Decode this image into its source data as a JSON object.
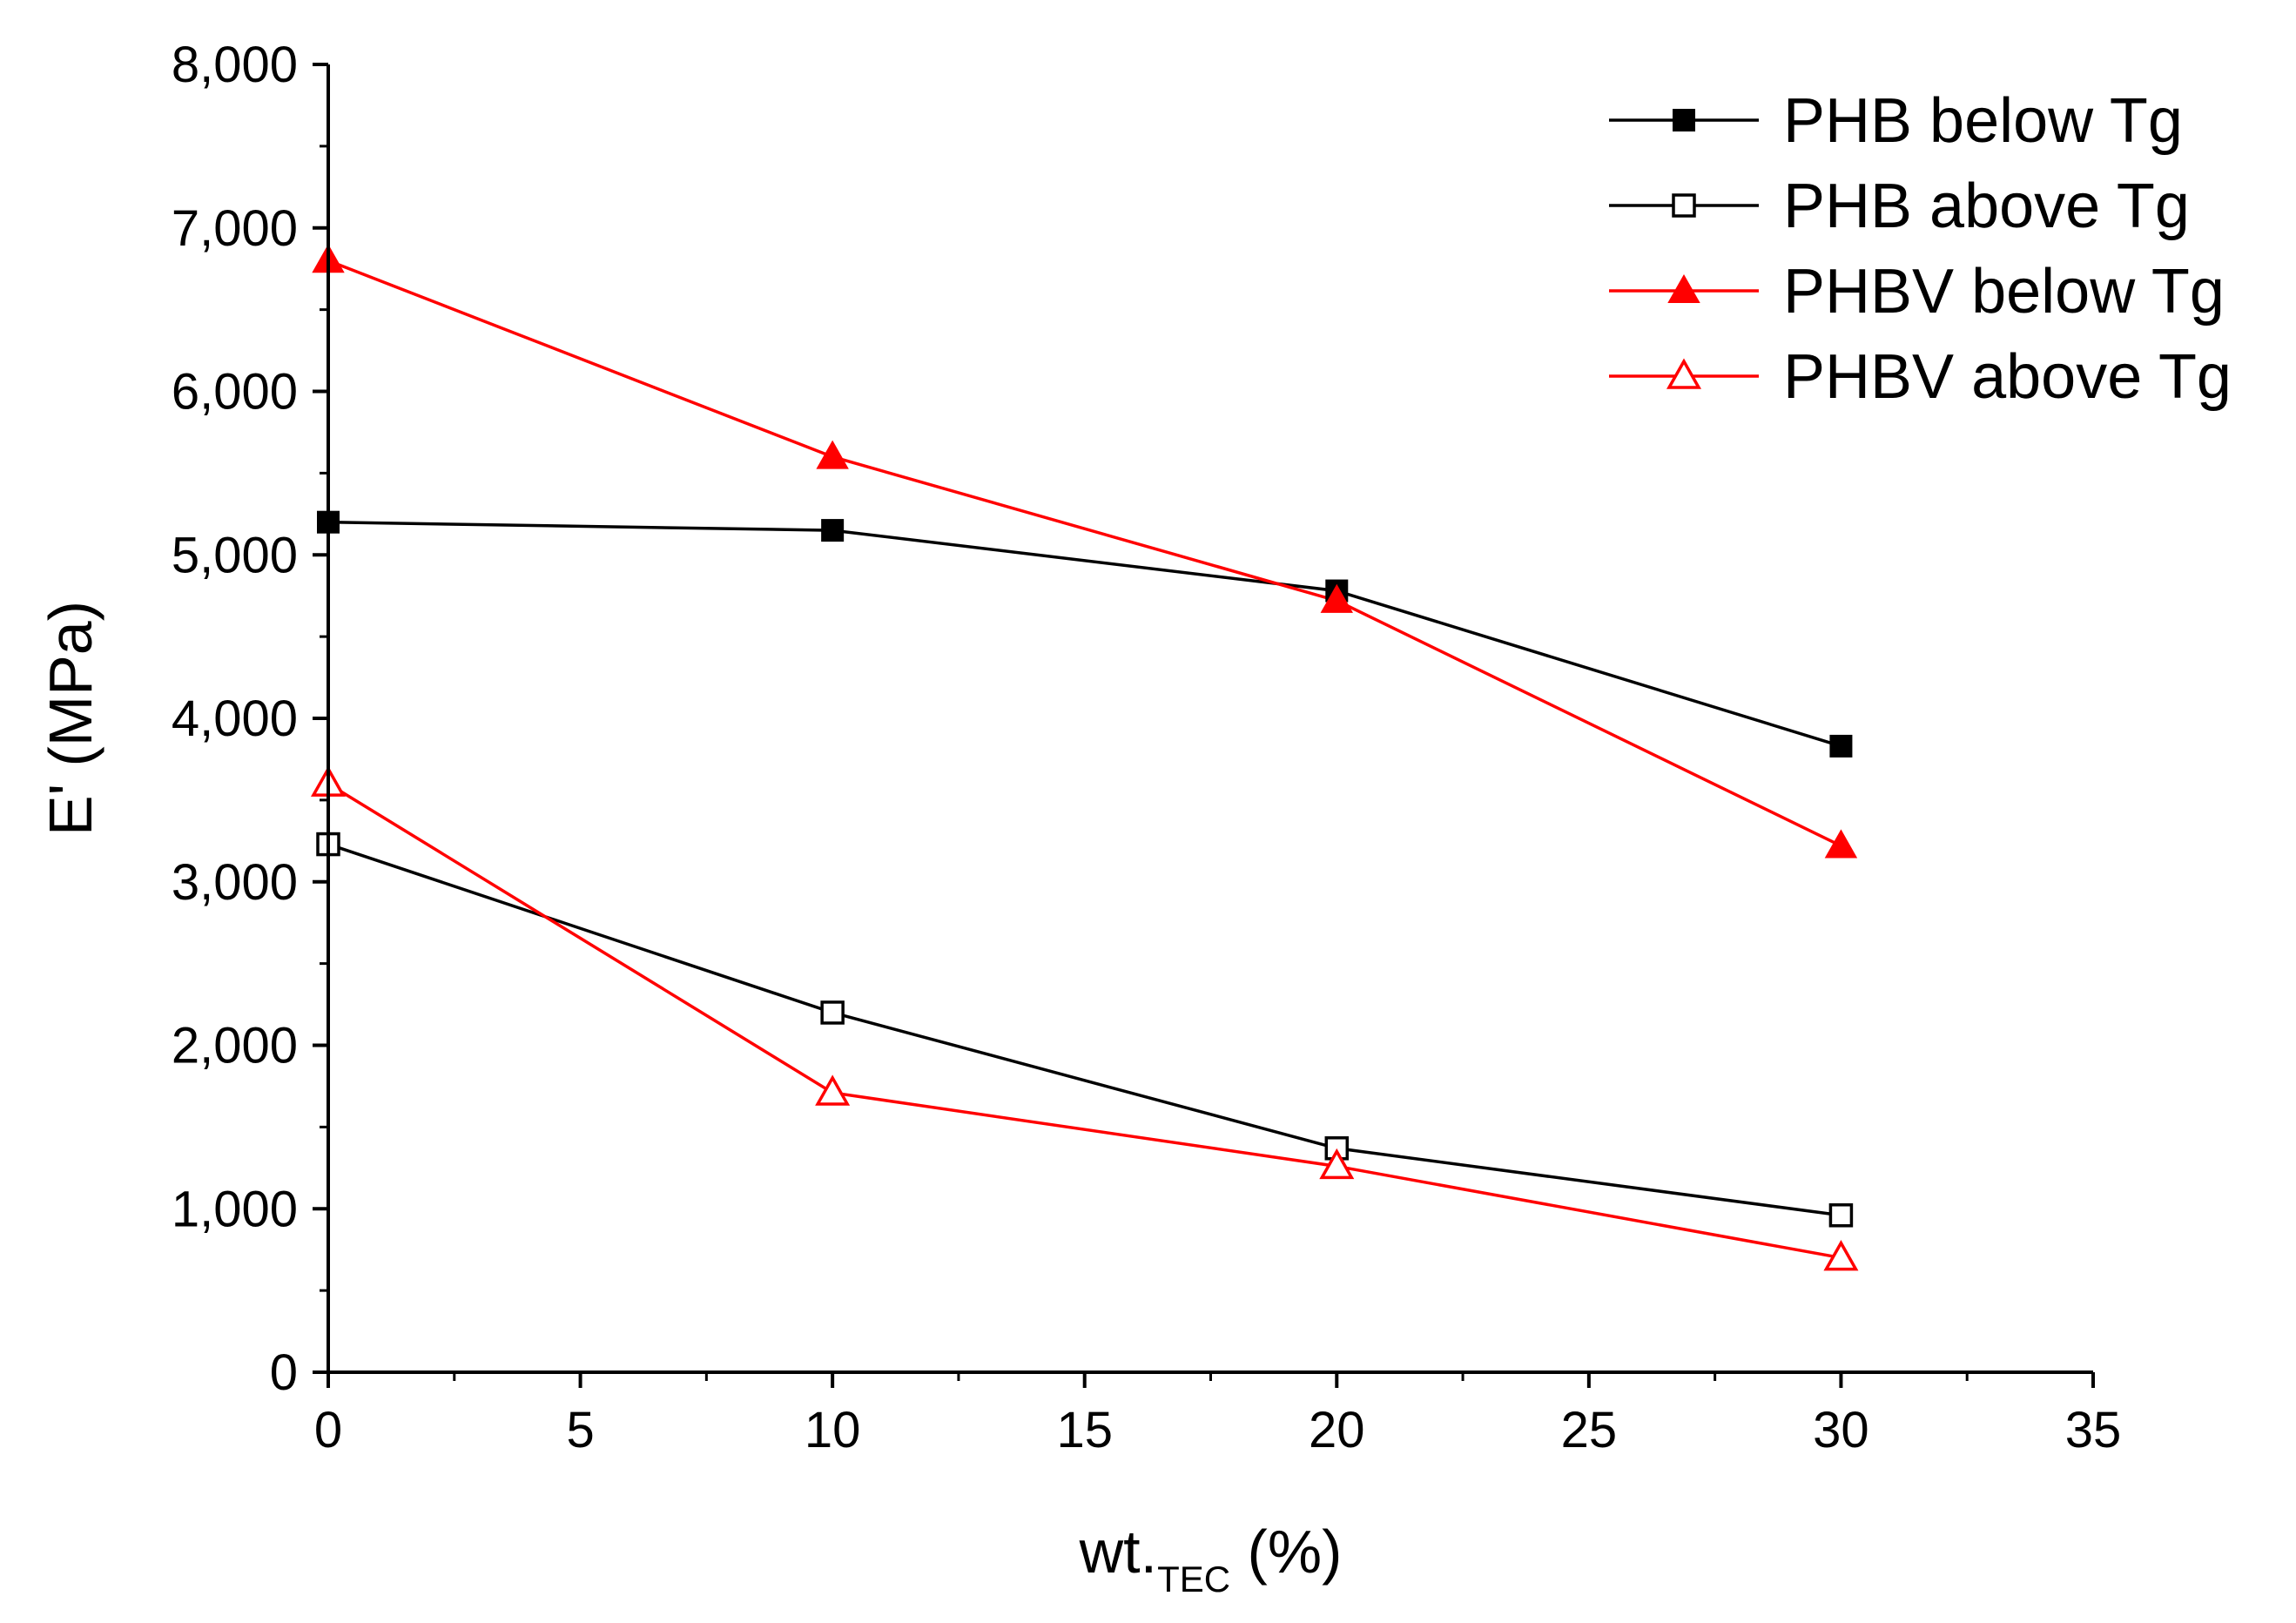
{
  "chart_data": {
    "type": "line",
    "title": "",
    "x": [
      0,
      10,
      20,
      30
    ],
    "xlim": [
      0,
      35
    ],
    "ylim": [
      0,
      8000
    ],
    "x_ticks": [
      0,
      5,
      10,
      15,
      20,
      25,
      30,
      35
    ],
    "x_tick_labels": [
      "0",
      "5",
      "10",
      "15",
      "20",
      "25",
      "30",
      "35"
    ],
    "y_ticks": [
      0,
      1000,
      2000,
      3000,
      4000,
      5000,
      6000,
      7000,
      8000
    ],
    "y_tick_labels": [
      "0",
      "1,000",
      "2,000",
      "3,000",
      "4,000",
      "5,000",
      "6,000",
      "7,000",
      "8,000"
    ],
    "xlabel": {
      "main": "wt.",
      "subscript": "TEC",
      "suffix": " (%)"
    },
    "ylabel": "E' (MPa)",
    "grid": false,
    "legend_position": "top-right",
    "series": [
      {
        "name": "PHB below Tg",
        "color": "#000000",
        "marker": "filled-square",
        "values": [
          5200,
          5150,
          4780,
          3830
        ]
      },
      {
        "name": "PHB above Tg",
        "color": "#000000",
        "marker": "open-square",
        "values": [
          3230,
          2200,
          1370,
          960
        ]
      },
      {
        "name": "PHBV below Tg",
        "color": "#ff0000",
        "marker": "filled-triangle",
        "values": [
          6800,
          5600,
          4720,
          3220
        ]
      },
      {
        "name": "PHBV above Tg",
        "color": "#ff0000",
        "marker": "open-triangle",
        "values": [
          3600,
          1710,
          1260,
          700
        ]
      }
    ]
  }
}
